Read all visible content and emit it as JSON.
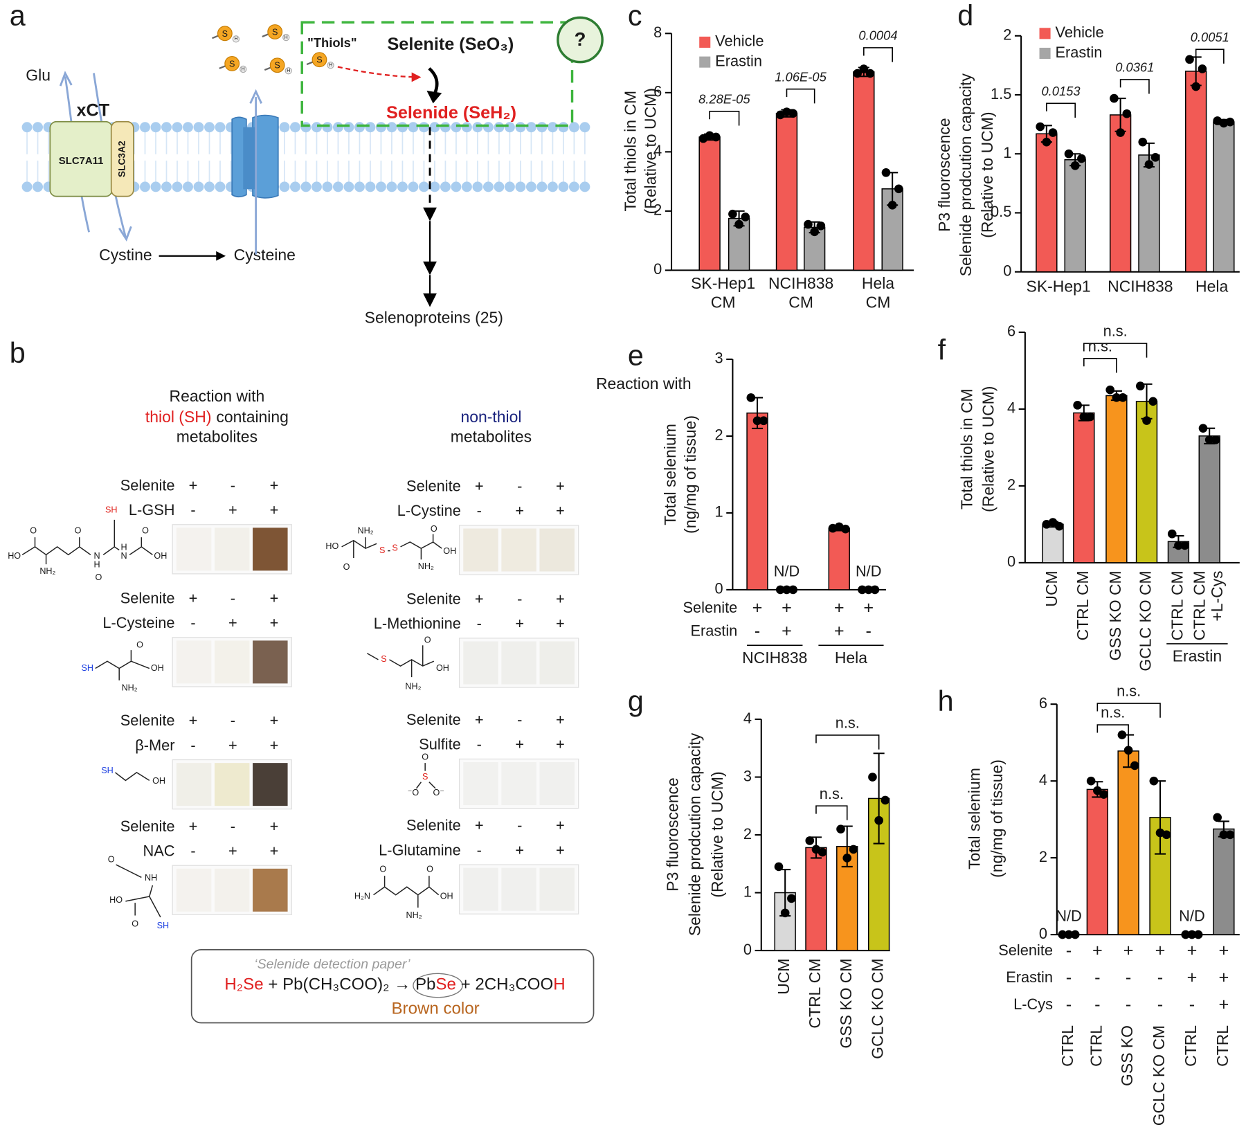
{
  "panel_a": {
    "panel": "a",
    "glu": "Glu",
    "xct": "xCT",
    "slc7a11": "SLC7A11",
    "slc3a2": "SLC3A2",
    "cystine": "Cystine",
    "cysteine": "Cysteine",
    "thiols": "\"Thiols\"",
    "thiol_atom": "S",
    "thiol_h": "H",
    "selenite": "Selenite (SeO₃)",
    "selenide": "Selenide (SeH₂)",
    "question": "?",
    "selenoproteins": "Selenoproteins (25)"
  },
  "panel_b": {
    "panel": "b",
    "left_header": {
      "line1": "Reaction with",
      "highlight": "thiol (SH)",
      "rest": "containing",
      "line3": "metabolites",
      "highlight_color": "#e02020"
    },
    "right_header": {
      "highlight": "non-thiol",
      "line3": "metabolites",
      "highlight_color": "#1a237e"
    },
    "left": [
      {
        "rows": [
          {
            "label": "Selenite",
            "signs": [
              "+",
              "-",
              "+"
            ]
          },
          {
            "label": "L-GSH",
            "signs": [
              "-",
              "+",
              "+"
            ]
          }
        ],
        "strip_colors": [
          "#f4f2ee",
          "#f2f0ea",
          "#7e5535"
        ],
        "structure": [
          "HO",
          "O",
          "NH₂",
          "O",
          "SH",
          "O",
          "N",
          "H",
          "N",
          "H",
          "O",
          "OH"
        ]
      },
      {
        "rows": [
          {
            "label": "Selenite",
            "signs": [
              "+",
              "-",
              "+"
            ]
          },
          {
            "label": "L-Cysteine",
            "signs": [
              "-",
              "+",
              "+"
            ]
          }
        ],
        "strip_colors": [
          "#f4f2ee",
          "#f3f1ea",
          "#7a6150"
        ],
        "structure": [
          "SH",
          "O",
          "OH",
          "NH₂"
        ]
      },
      {
        "rows": [
          {
            "label": "Selenite",
            "signs": [
              "+",
              "-",
              "+"
            ]
          },
          {
            "label": "β-Mer",
            "signs": [
              "-",
              "+",
              "+"
            ]
          }
        ],
        "strip_colors": [
          "#f0efe8",
          "#eeeacf",
          "#4a3f37"
        ],
        "structure": [
          "SH",
          "OH"
        ]
      },
      {
        "rows": [
          {
            "label": "Selenite",
            "signs": [
              "+",
              "-",
              "+"
            ]
          },
          {
            "label": "NAC",
            "signs": [
              "-",
              "+",
              "+"
            ]
          }
        ],
        "strip_colors": [
          "#f4f2ee",
          "#f3f1ec",
          "#a97a4c"
        ],
        "structure": [
          "O",
          "NH",
          "HO",
          "O",
          "SH"
        ]
      }
    ],
    "right": [
      {
        "rows": [
          {
            "label": "Selenite",
            "signs": [
              "+",
              "-",
              "+"
            ]
          },
          {
            "label": "L-Cystine",
            "signs": [
              "-",
              "+",
              "+"
            ]
          }
        ],
        "strip_colors": [
          "#eeeadf",
          "#efebe0",
          "#ecE8dd"
        ],
        "structure": [
          "NH₂",
          "HO",
          "O",
          "S",
          "S",
          "O",
          "OH",
          "NH₂"
        ]
      },
      {
        "rows": [
          {
            "label": "Selenite",
            "signs": [
              "+",
              "-",
              "+"
            ]
          },
          {
            "label": "L-Methionine",
            "signs": [
              "-",
              "+",
              "+"
            ]
          }
        ],
        "strip_colors": [
          "#efefec",
          "#efefec",
          "#eeeeea"
        ],
        "structure": [
          "S",
          "O",
          "OH",
          "NH₂"
        ]
      },
      {
        "rows": [
          {
            "label": "Selenite",
            "signs": [
              "+",
              "-",
              "+"
            ]
          },
          {
            "label": "Sulfite",
            "signs": [
              "-",
              "+",
              "+"
            ]
          }
        ],
        "strip_colors": [
          "#f1f1ef",
          "#f1f1ef",
          "#f0f0ee"
        ],
        "structure": [
          "O",
          "S",
          "⁻O",
          "O⁻"
        ]
      },
      {
        "rows": [
          {
            "label": "Selenite",
            "signs": [
              "+",
              "-",
              "+"
            ]
          },
          {
            "label": "L-Glutamine",
            "signs": [
              "-",
              "+",
              "+"
            ]
          }
        ],
        "strip_colors": [
          "#f0f0ee",
          "#f0f0ee",
          "#efefec"
        ],
        "structure": [
          "O",
          "H₂N",
          "O",
          "OH",
          "NH₂"
        ]
      }
    ],
    "box": {
      "caption": "‘Selenide detection paper’",
      "equation": [
        {
          "text": "H₂Se",
          "color": "#e02020"
        },
        {
          "text": " + Pb(CH₃COO)₂ → ",
          "color": "#1a1a1a"
        },
        {
          "text": "Pb",
          "color": "#1a1a1a"
        },
        {
          "text": "Se",
          "color": "#e02020"
        },
        {
          "text": " + 2CH₃COO",
          "color": "#1a1a1a"
        },
        {
          "text": "H",
          "color": "#e02020"
        }
      ],
      "note": "Brown color",
      "note_color": "#b8651f"
    }
  },
  "chart_data": [
    {
      "type": "bar",
      "panel": "c",
      "ylabel": [
        "Total thiols in CM",
        "(Relative to UCM)"
      ],
      "categories": [
        [
          "SK-Hep1",
          "CM"
        ],
        [
          "NCIH838",
          "CM"
        ],
        [
          "Hela",
          "CM"
        ]
      ],
      "series": [
        {
          "name": "Vehicle",
          "color": "#f25a55",
          "values": [
            4.5,
            5.3,
            6.7
          ],
          "errors": [
            0.1,
            0.12,
            0.15
          ],
          "points": [
            [
              4.45,
              4.55,
              4.5
            ],
            [
              5.25,
              5.35,
              5.3
            ],
            [
              6.65,
              6.8,
              6.65
            ]
          ]
        },
        {
          "name": "Erastin",
          "color": "#a6a6a6",
          "values": [
            1.75,
            1.45,
            2.75
          ],
          "errors": [
            0.25,
            0.18,
            0.55
          ],
          "points": [
            [
              1.9,
              1.55,
              1.8
            ],
            [
              1.55,
              1.3,
              1.5
            ],
            [
              3.3,
              2.2,
              2.75
            ]
          ]
        }
      ],
      "ylim": [
        0,
        8
      ],
      "yticks": [
        0,
        2,
        4,
        6,
        8
      ],
      "legend": "top-left",
      "annotations": [
        "8.28E-05",
        "1.06E-05",
        "0.0004"
      ]
    },
    {
      "type": "bar",
      "panel": "d",
      "ylabel": [
        "P3 fluoroscence",
        "Selenide prodcution capacity",
        "(Relative to UCM)"
      ],
      "categories": [
        [
          "SK-Hep1"
        ],
        [
          "NCIH838"
        ],
        [
          "Hela"
        ]
      ],
      "series": [
        {
          "name": "Vehicle",
          "color": "#f25a55",
          "values": [
            1.17,
            1.33,
            1.7
          ],
          "errors": [
            0.07,
            0.14,
            0.12
          ],
          "points": [
            [
              1.23,
              1.1,
              1.18
            ],
            [
              1.47,
              1.18,
              1.34
            ],
            [
              1.8,
              1.57,
              1.72
            ]
          ]
        },
        {
          "name": "Erastin",
          "color": "#a6a6a6",
          "values": [
            0.95,
            0.99,
            1.27
          ],
          "errors": [
            0.05,
            0.1,
            0.02
          ],
          "points": [
            [
              1.0,
              0.9,
              0.96
            ],
            [
              1.1,
              0.91,
              0.97
            ],
            [
              1.28,
              1.26,
              1.27
            ]
          ]
        }
      ],
      "ylim": [
        0,
        2
      ],
      "yticks": [
        0,
        0.5,
        1,
        1.5,
        2
      ],
      "legend": "top-left",
      "annotations": [
        "0.0153",
        "0.0361",
        "0.0051"
      ]
    },
    {
      "type": "bar",
      "panel": "e",
      "note": "Reaction with",
      "ylabel": [
        "Total selenium",
        "(ng/mg of tissue)"
      ],
      "values": [
        2.3,
        null,
        0.8,
        null
      ],
      "value_labels": [
        null,
        "N/D",
        null,
        "N/D"
      ],
      "errors": [
        0.2,
        null,
        0.03,
        null
      ],
      "colors": [
        "#f25a55",
        "#f25a55",
        "#f25a55",
        "#f25a55"
      ],
      "points": [
        [
          2.5,
          2.2,
          2.2
        ],
        [
          0,
          0,
          0
        ],
        [
          0.8,
          0.82,
          0.79
        ],
        [
          0,
          0,
          0
        ]
      ],
      "rows": [
        {
          "label": "Selenite",
          "signs": [
            "+",
            "+",
            "+",
            "+"
          ]
        },
        {
          "label": "Erastin",
          "signs": [
            "-",
            "+",
            "+",
            "-"
          ]
        }
      ],
      "groups": [
        "NCIH838",
        "Hela"
      ],
      "ylim": [
        0,
        3
      ],
      "yticks": [
        0,
        1,
        2,
        3
      ]
    },
    {
      "type": "bar",
      "panel": "f",
      "ylabel": [
        "Total thiols in CM",
        "(Relative to UCM)"
      ],
      "categories": [
        [
          "UCM"
        ],
        [
          "CTRL CM"
        ],
        [
          "GSS KO CM"
        ],
        [
          "GCLC KO CM"
        ],
        [
          "CTRL CM"
        ],
        [
          "CTRL CM",
          "+L-Cys"
        ]
      ],
      "values": [
        1.0,
        3.9,
        4.35,
        4.2,
        0.55,
        3.3
      ],
      "errors": [
        0.07,
        0.2,
        0.12,
        0.45,
        0.15,
        0.2
      ],
      "colors": [
        "#d9d9d9",
        "#f25a55",
        "#f7941d",
        "#c8c41a",
        "#8c8c8c",
        "#8c8c8c"
      ],
      "points": [
        [
          1.0,
          1.05,
          0.95
        ],
        [
          4.1,
          3.8,
          3.8
        ],
        [
          4.5,
          4.3,
          4.3
        ],
        [
          4.6,
          3.7,
          4.2
        ],
        [
          0.75,
          0.45,
          0.45
        ],
        [
          3.5,
          3.2,
          3.2
        ]
      ],
      "groups": [
        "Erastin"
      ],
      "annotations": [
        "n.s.",
        "n.s."
      ],
      "ylim": [
        0,
        6
      ],
      "yticks": [
        0,
        2,
        4,
        6
      ]
    },
    {
      "type": "bar",
      "panel": "g",
      "ylabel": [
        "P3 fluoroscence",
        "Selenide prodcution capacity",
        "(Relative to UCM)"
      ],
      "categories": [
        [
          "UCM"
        ],
        [
          "CTRL CM"
        ],
        [
          "GSS KO CM"
        ],
        [
          "GCLC KO CM"
        ]
      ],
      "values": [
        1.0,
        1.78,
        1.8,
        2.63
      ],
      "errors": [
        0.4,
        0.18,
        0.35,
        0.78
      ],
      "colors": [
        "#d9d9d9",
        "#f25a55",
        "#f7941d",
        "#c8c41a"
      ],
      "points": [
        [
          1.45,
          0.65,
          0.9
        ],
        [
          1.9,
          1.75,
          1.7
        ],
        [
          2.1,
          1.6,
          1.75
        ],
        [
          3.0,
          2.25,
          2.6
        ]
      ],
      "annotations": [
        "n.s.",
        "n.s."
      ],
      "ylim": [
        0,
        4
      ],
      "yticks": [
        0,
        1,
        2,
        3,
        4
      ]
    },
    {
      "type": "bar",
      "panel": "h",
      "ylabel": [
        "Total selenium",
        "(ng/mg of tissue)"
      ],
      "categories": [
        [
          "CTRL"
        ],
        [
          "CTRL"
        ],
        [
          "GSS KO"
        ],
        [
          "GCLC KO CM"
        ],
        [
          "CTRL"
        ],
        [
          "CTRL"
        ]
      ],
      "values": [
        null,
        3.78,
        4.78,
        3.05,
        null,
        2.75
      ],
      "value_labels": [
        "N/D",
        null,
        null,
        null,
        "N/D",
        null
      ],
      "errors": [
        null,
        0.2,
        0.42,
        0.95,
        null,
        0.2
      ],
      "colors": [
        "#d9d9d9",
        "#f25a55",
        "#f7941d",
        "#c8c41a",
        "#8c8c8c",
        "#8c8c8c"
      ],
      "points": [
        [
          0,
          0,
          0
        ],
        [
          4.0,
          3.75,
          3.65
        ],
        [
          5.2,
          4.8,
          4.4
        ],
        [
          4.0,
          2.65,
          2.6
        ],
        [
          0,
          0,
          0
        ],
        [
          3.05,
          2.6,
          2.6
        ]
      ],
      "rows": [
        {
          "label": "Selenite",
          "signs": [
            "-",
            "+",
            "+",
            "+",
            "+",
            "+"
          ]
        },
        {
          "label": "Erastin",
          "signs": [
            "-",
            "-",
            "-",
            "-",
            "+",
            "+"
          ]
        },
        {
          "label": "L-Cys",
          "signs": [
            "-",
            "-",
            "-",
            "-",
            "-",
            "+"
          ]
        }
      ],
      "annotations": [
        "n.s.",
        "n.s."
      ],
      "ylim": [
        0,
        6
      ],
      "yticks": [
        0,
        2,
        4,
        6
      ]
    }
  ]
}
